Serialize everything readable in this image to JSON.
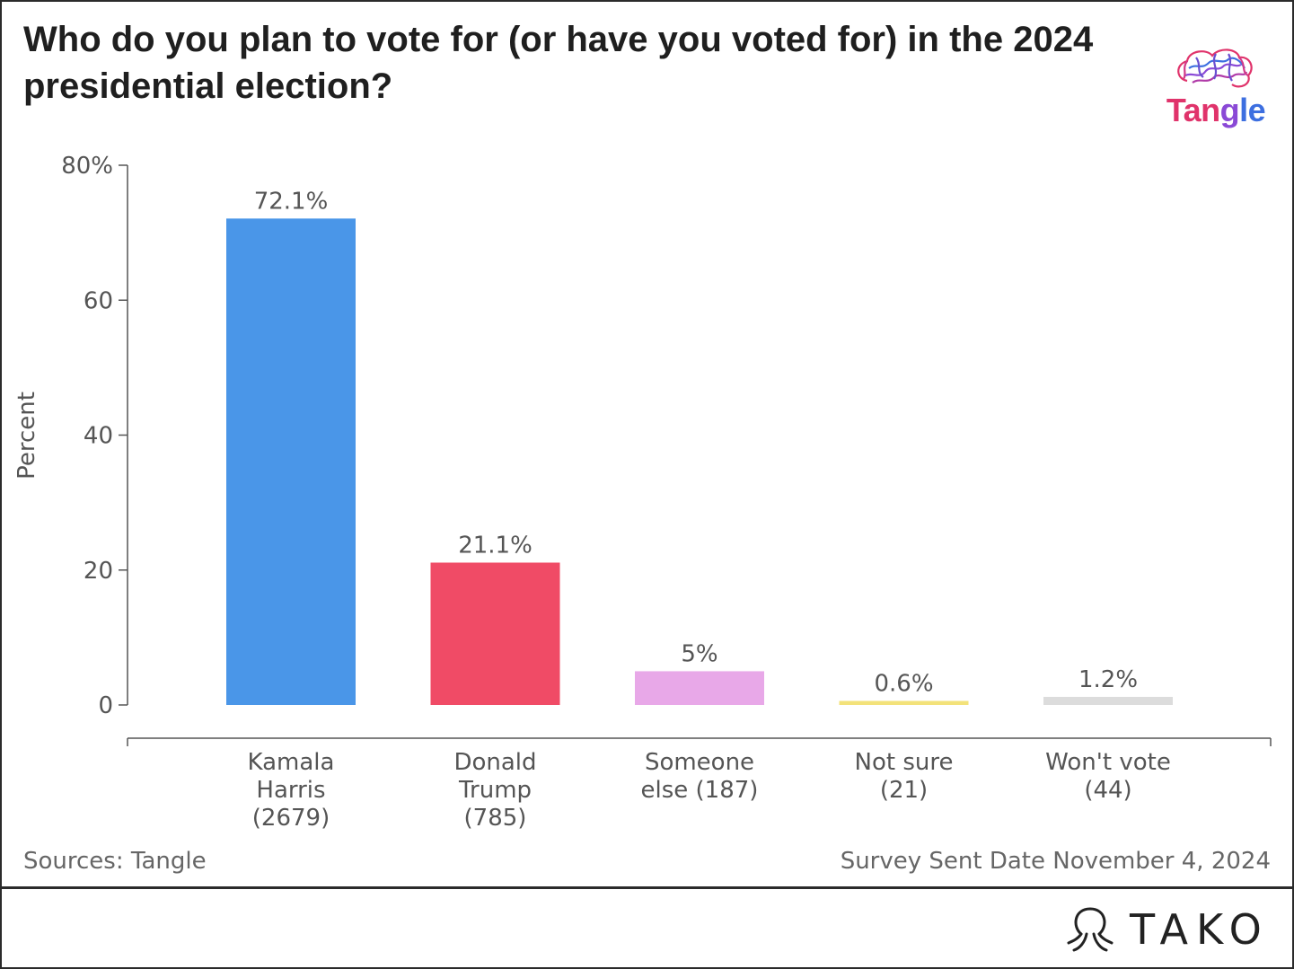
{
  "header": {
    "title": "Who do you plan to vote for (or have you voted for) in the 2024 presidential election?"
  },
  "logo": {
    "text": "Tangle",
    "icon": "brain-icon",
    "colors": {
      "pink": "#e0336b",
      "purple": "#8a49d6",
      "blue": "#3d6fe0"
    }
  },
  "chart_data": {
    "type": "bar",
    "categories": [
      "Kamala Harris (2679)",
      "Donald Trump (785)",
      "Someone else (187)",
      "Not sure (21)",
      "Won't vote (44)"
    ],
    "category_lines": [
      [
        "Kamala",
        "Harris",
        "(2679)"
      ],
      [
        "Donald",
        "Trump",
        "(785)"
      ],
      [
        "Someone",
        "else (187)"
      ],
      [
        "Not sure",
        "(21)"
      ],
      [
        "Won't vote",
        "(44)"
      ]
    ],
    "values": [
      72.1,
      21.1,
      5,
      0.6,
      1.2
    ],
    "data_labels": [
      "72.1%",
      "21.1%",
      "5%",
      "0.6%",
      "1.2%"
    ],
    "colors": [
      "#4a96e8",
      "#f04b66",
      "#e8a8e8",
      "#f3e27a",
      "#dcdcdc"
    ],
    "ylabel": "Percent",
    "xlabel": "",
    "ylim": [
      0,
      80
    ],
    "yticks": [
      0,
      20,
      40,
      60,
      80
    ],
    "ytick_labels": [
      "0",
      "20",
      "40",
      "60",
      "80%"
    ],
    "grid": false
  },
  "footer": {
    "source": "Sources: Tangle",
    "date": "Survey Sent Date November 4, 2024"
  },
  "branding": {
    "name": "TAKO",
    "icon": "octopus-icon"
  }
}
